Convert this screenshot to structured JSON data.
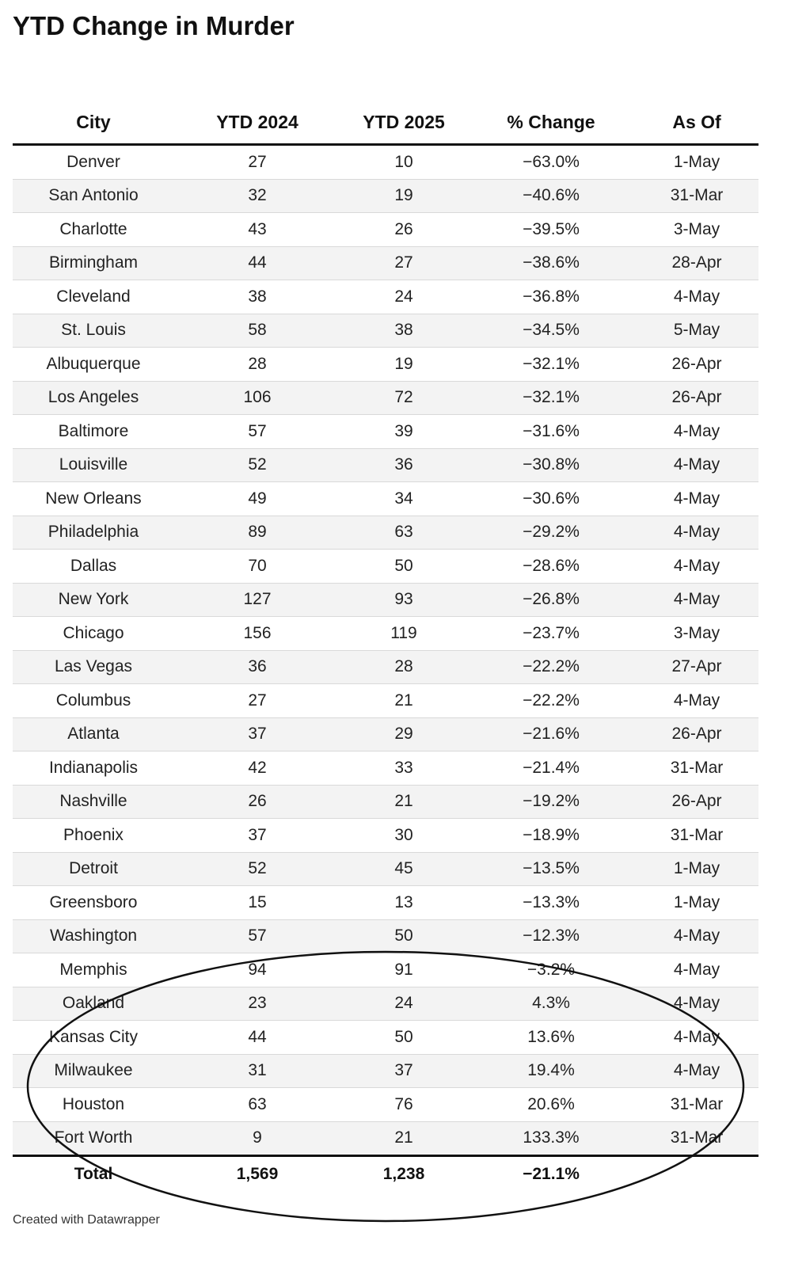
{
  "title": "YTD Change in Murder",
  "columns": [
    "City",
    "YTD 2024",
    "YTD 2025",
    "% Change",
    "As Of"
  ],
  "rows": [
    [
      "Denver",
      "27",
      "10",
      "−63.0%",
      "1-May"
    ],
    [
      "San Antonio",
      "32",
      "19",
      "−40.6%",
      "31-Mar"
    ],
    [
      "Charlotte",
      "43",
      "26",
      "−39.5%",
      "3-May"
    ],
    [
      "Birmingham",
      "44",
      "27",
      "−38.6%",
      "28-Apr"
    ],
    [
      "Cleveland",
      "38",
      "24",
      "−36.8%",
      "4-May"
    ],
    [
      "St. Louis",
      "58",
      "38",
      "−34.5%",
      "5-May"
    ],
    [
      "Albuquerque",
      "28",
      "19",
      "−32.1%",
      "26-Apr"
    ],
    [
      "Los Angeles",
      "106",
      "72",
      "−32.1%",
      "26-Apr"
    ],
    [
      "Baltimore",
      "57",
      "39",
      "−31.6%",
      "4-May"
    ],
    [
      "Louisville",
      "52",
      "36",
      "−30.8%",
      "4-May"
    ],
    [
      "New Orleans",
      "49",
      "34",
      "−30.6%",
      "4-May"
    ],
    [
      "Philadelphia",
      "89",
      "63",
      "−29.2%",
      "4-May"
    ],
    [
      "Dallas",
      "70",
      "50",
      "−28.6%",
      "4-May"
    ],
    [
      "New York",
      "127",
      "93",
      "−26.8%",
      "4-May"
    ],
    [
      "Chicago",
      "156",
      "119",
      "−23.7%",
      "3-May"
    ],
    [
      "Las Vegas",
      "36",
      "28",
      "−22.2%",
      "27-Apr"
    ],
    [
      "Columbus",
      "27",
      "21",
      "−22.2%",
      "4-May"
    ],
    [
      "Atlanta",
      "37",
      "29",
      "−21.6%",
      "26-Apr"
    ],
    [
      "Indianapolis",
      "42",
      "33",
      "−21.4%",
      "31-Mar"
    ],
    [
      "Nashville",
      "26",
      "21",
      "−19.2%",
      "26-Apr"
    ],
    [
      "Phoenix",
      "37",
      "30",
      "−18.9%",
      "31-Mar"
    ],
    [
      "Detroit",
      "52",
      "45",
      "−13.5%",
      "1-May"
    ],
    [
      "Greensboro",
      "15",
      "13",
      "−13.3%",
      "1-May"
    ],
    [
      "Washington",
      "57",
      "50",
      "−12.3%",
      "4-May"
    ],
    [
      "Memphis",
      "94",
      "91",
      "−3.2%",
      "4-May"
    ],
    [
      "Oakland",
      "23",
      "24",
      "4.3%",
      "4-May"
    ],
    [
      "Kansas City",
      "44",
      "50",
      "13.6%",
      "4-May"
    ],
    [
      "Milwaukee",
      "31",
      "37",
      "19.4%",
      "4-May"
    ],
    [
      "Houston",
      "63",
      "76",
      "20.6%",
      "31-Mar"
    ],
    [
      "Fort Worth",
      "9",
      "21",
      "133.3%",
      "31-Mar"
    ]
  ],
  "total": [
    "Total",
    "1,569",
    "1,238",
    "−21.1%",
    ""
  ],
  "footer": "Created with Datawrapper",
  "annotation": {
    "shape": "ellipse",
    "color": "#111111"
  }
}
